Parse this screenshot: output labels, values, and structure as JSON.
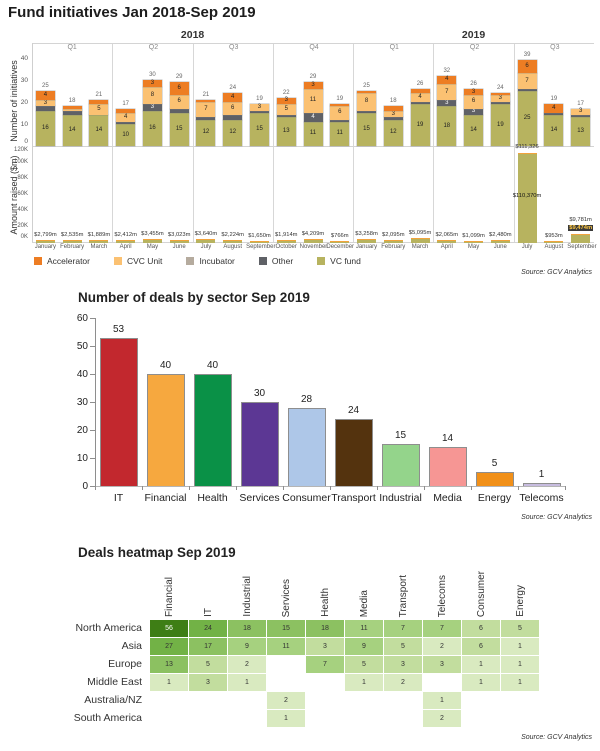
{
  "chart_data": [
    {
      "type": "bar",
      "variant": "stacked-dual-panel",
      "title": "Fund initiatives Jan 2018-Sep 2019",
      "source": "Source: GCV Analytics",
      "ylabel_top": "Number of initiatives",
      "ylabel_bottom": "Amount raised ($m)",
      "ylim_top": [
        0,
        40
      ],
      "yticks_top": [
        0,
        10,
        20,
        30,
        40
      ],
      "ylim_bottom_thousands": [
        0,
        120
      ],
      "yticks_bottom": [
        "0K",
        "20K",
        "40K",
        "60K",
        "80K",
        "100K",
        "120K"
      ],
      "grid": false,
      "legend_position": "bottom",
      "legend": [
        {
          "label": "Accelerator",
          "color": "#ed7d23"
        },
        {
          "label": "CVC Unit",
          "color": "#fbc172"
        },
        {
          "label": "Incubator",
          "color": "#b5ab9e"
        },
        {
          "label": "Other",
          "color": "#5f6166"
        },
        {
          "label": "VC fund",
          "color": "#b7b35f"
        }
      ],
      "segment_order": [
        "VC fund",
        "Other",
        "Incubator",
        "CVC Unit",
        "Accelerator"
      ],
      "segment_colors": [
        "#b7b35f",
        "#5f6166",
        "#b5ab9e",
        "#fbc172",
        "#ed7d23"
      ],
      "years": [
        {
          "label": "2018",
          "quarters": [
            "Q1",
            "Q2",
            "Q3",
            "Q4"
          ]
        },
        {
          "label": "2019",
          "quarters": [
            "Q1",
            "Q2",
            "Q3"
          ]
        }
      ],
      "months": [
        {
          "name": "January",
          "total": 25,
          "segments": [
            16,
            2,
            0,
            3,
            4
          ],
          "amount": 2799,
          "amount_label": "$2,799m"
        },
        {
          "name": "February",
          "total": 18,
          "segments": [
            14,
            2,
            0,
            1,
            1
          ],
          "amount": 2535,
          "amount_label": "$2,535m"
        },
        {
          "name": "March",
          "total": 21,
          "segments": [
            14,
            0,
            0,
            5,
            2
          ],
          "amount": 1889,
          "amount_label": "$1,889m"
        },
        {
          "name": "April",
          "total": 17,
          "segments": [
            10,
            1,
            0,
            4,
            2
          ],
          "amount": 2412,
          "amount_label": "$2,412m"
        },
        {
          "name": "May",
          "total": 30,
          "segments": [
            16,
            3,
            0,
            8,
            3
          ],
          "amount": 3455,
          "amount_label": "$3,455m"
        },
        {
          "name": "June",
          "total": 29,
          "segments": [
            15,
            2,
            0,
            6,
            6
          ],
          "amount": 3023,
          "amount_label": "$3,023m"
        },
        {
          "name": "July",
          "total": 21,
          "segments": [
            12,
            1,
            0,
            7,
            1
          ],
          "amount": 3640,
          "amount_label": "$3,640m"
        },
        {
          "name": "August",
          "total": 24,
          "segments": [
            12,
            2,
            0,
            6,
            4
          ],
          "amount": 2224,
          "amount_label": "$2,224m"
        },
        {
          "name": "September",
          "total": 19,
          "segments": [
            15,
            1,
            0,
            3,
            0
          ],
          "amount": 1650,
          "amount_label": "$1,650m"
        },
        {
          "name": "October",
          "total": 22,
          "segments": [
            13,
            1,
            0,
            5,
            3
          ],
          "amount": 1914,
          "amount_label": "$1,914m"
        },
        {
          "name": "November",
          "total": 29,
          "segments": [
            11,
            4,
            0,
            11,
            3
          ],
          "amount": 4209,
          "amount_label": "$4,209m"
        },
        {
          "name": "December",
          "total": 19,
          "segments": [
            11,
            1,
            0,
            6,
            1
          ],
          "amount": 766,
          "amount_label": "$766m"
        },
        {
          "name": "January",
          "total": 25,
          "segments": [
            15,
            1,
            0,
            8,
            1
          ],
          "amount": 3258,
          "amount_label": "$3,258m"
        },
        {
          "name": "February",
          "total": 18,
          "segments": [
            12,
            1,
            0,
            3,
            2
          ],
          "amount": 2095,
          "amount_label": "$2,095m"
        },
        {
          "name": "March",
          "total": 26,
          "segments": [
            19,
            1,
            0,
            4,
            2
          ],
          "amount": 5095,
          "amount_label": "$5,095m"
        },
        {
          "name": "April",
          "total": 32,
          "segments": [
            18,
            3,
            0,
            7,
            4
          ],
          "amount": 2065,
          "amount_label": "$2,065m"
        },
        {
          "name": "May",
          "total": 26,
          "segments": [
            14,
            3,
            0,
            6,
            3
          ],
          "amount": 1099,
          "amount_label": "$1,099m"
        },
        {
          "name": "June",
          "total": 24,
          "segments": [
            19,
            1,
            0,
            3,
            1
          ],
          "amount": 2480,
          "amount_label": "$2,480m"
        },
        {
          "name": "July",
          "total": 39,
          "segments": [
            25,
            1,
            0,
            7,
            6
          ],
          "amount": 111326,
          "amount_label": "$111,326",
          "amount_label_inside": "$110,370m"
        },
        {
          "name": "August",
          "total": 19,
          "segments": [
            14,
            1,
            0,
            0,
            4
          ],
          "amount": 953,
          "amount_label": "$953m"
        },
        {
          "name": "September",
          "total": 17,
          "segments": [
            13,
            1,
            0,
            3,
            0
          ],
          "amount": 9781,
          "amount_label": "$9,781m",
          "amount_label_highlight": "$9,474m"
        }
      ]
    },
    {
      "type": "bar",
      "title": "Number of deals by sector Sep 2019",
      "source": "Source: GCV Analytics",
      "categories": [
        "IT",
        "Financial",
        "Health",
        "Services",
        "Consumer",
        "Transport",
        "Industrial",
        "Media",
        "Energy",
        "Telecoms"
      ],
      "values": [
        53,
        40,
        40,
        30,
        28,
        24,
        15,
        14,
        5,
        1
      ],
      "bar_colors": [
        "#c2282e",
        "#f6a83f",
        "#0a9147",
        "#5c3794",
        "#aec7e8",
        "#54330e",
        "#94d48b",
        "#f69694",
        "#f19019",
        "#c7bcdf"
      ],
      "xlabel": "",
      "ylabel": "",
      "ylim": [
        0,
        60
      ],
      "yticks": [
        0,
        10,
        20,
        30,
        40,
        50,
        60
      ],
      "grid": false
    },
    {
      "type": "heatmap",
      "title": "Deals heatmap Sep 2019",
      "source": "Source: GCV Analytics",
      "columns": [
        "Financial",
        "IT",
        "Industrial",
        "Services",
        "Health",
        "Media",
        "Transport",
        "Telecoms",
        "Consumer",
        "Energy"
      ],
      "rows": [
        "North America",
        "Asia",
        "Europe",
        "Middle East",
        "Australia/NZ",
        "South America"
      ],
      "matrix": [
        [
          56,
          24,
          18,
          15,
          18,
          11,
          7,
          7,
          6,
          5
        ],
        [
          27,
          17,
          9,
          11,
          3,
          9,
          5,
          2,
          6,
          1
        ],
        [
          13,
          5,
          2,
          null,
          7,
          5,
          3,
          3,
          1,
          1
        ],
        [
          1,
          3,
          1,
          null,
          null,
          1,
          2,
          null,
          1,
          1
        ],
        [
          null,
          null,
          null,
          2,
          null,
          null,
          null,
          1,
          null,
          null
        ],
        [
          null,
          null,
          null,
          1,
          null,
          null,
          null,
          2,
          null,
          null
        ]
      ],
      "color_scale": [
        {
          "min": 40,
          "color": "#3e7e15",
          "text": "#ffffff"
        },
        {
          "min": 20,
          "color": "#72b246",
          "text": "#333333"
        },
        {
          "min": 13,
          "color": "#8cc161",
          "text": "#333333"
        },
        {
          "min": 7,
          "color": "#a6d17f",
          "text": "#333333"
        },
        {
          "min": 3,
          "color": "#c2dd9e",
          "text": "#333333"
        },
        {
          "min": 1,
          "color": "#d9eac0",
          "text": "#333333"
        }
      ]
    }
  ]
}
